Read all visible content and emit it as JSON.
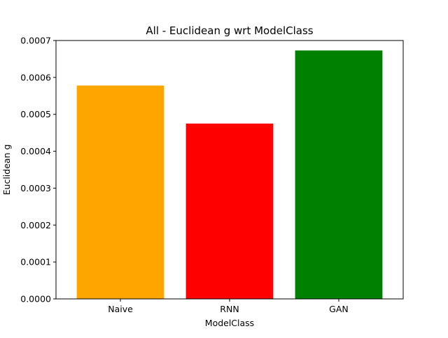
{
  "chart_data": {
    "type": "bar",
    "title": "All - Euclidean g wrt ModelClass",
    "xlabel": "ModelClass",
    "ylabel": "Euclidean g",
    "categories": [
      "Naive",
      "RNN",
      "GAN"
    ],
    "values": [
      0.000578,
      0.000475,
      0.000673
    ],
    "colors": [
      "#ffa500",
      "#ff0000",
      "#008000"
    ],
    "ylim": [
      0,
      0.0007
    ],
    "yticks": [
      0,
      0.0001,
      0.0002,
      0.0003,
      0.0004,
      0.0005,
      0.0006,
      0.0007
    ],
    "ytick_labels": [
      "0.0000",
      "0.0001",
      "0.0002",
      "0.0003",
      "0.0004",
      "0.0005",
      "0.0006",
      "0.0007"
    ],
    "grid": false,
    "legend": "none"
  }
}
